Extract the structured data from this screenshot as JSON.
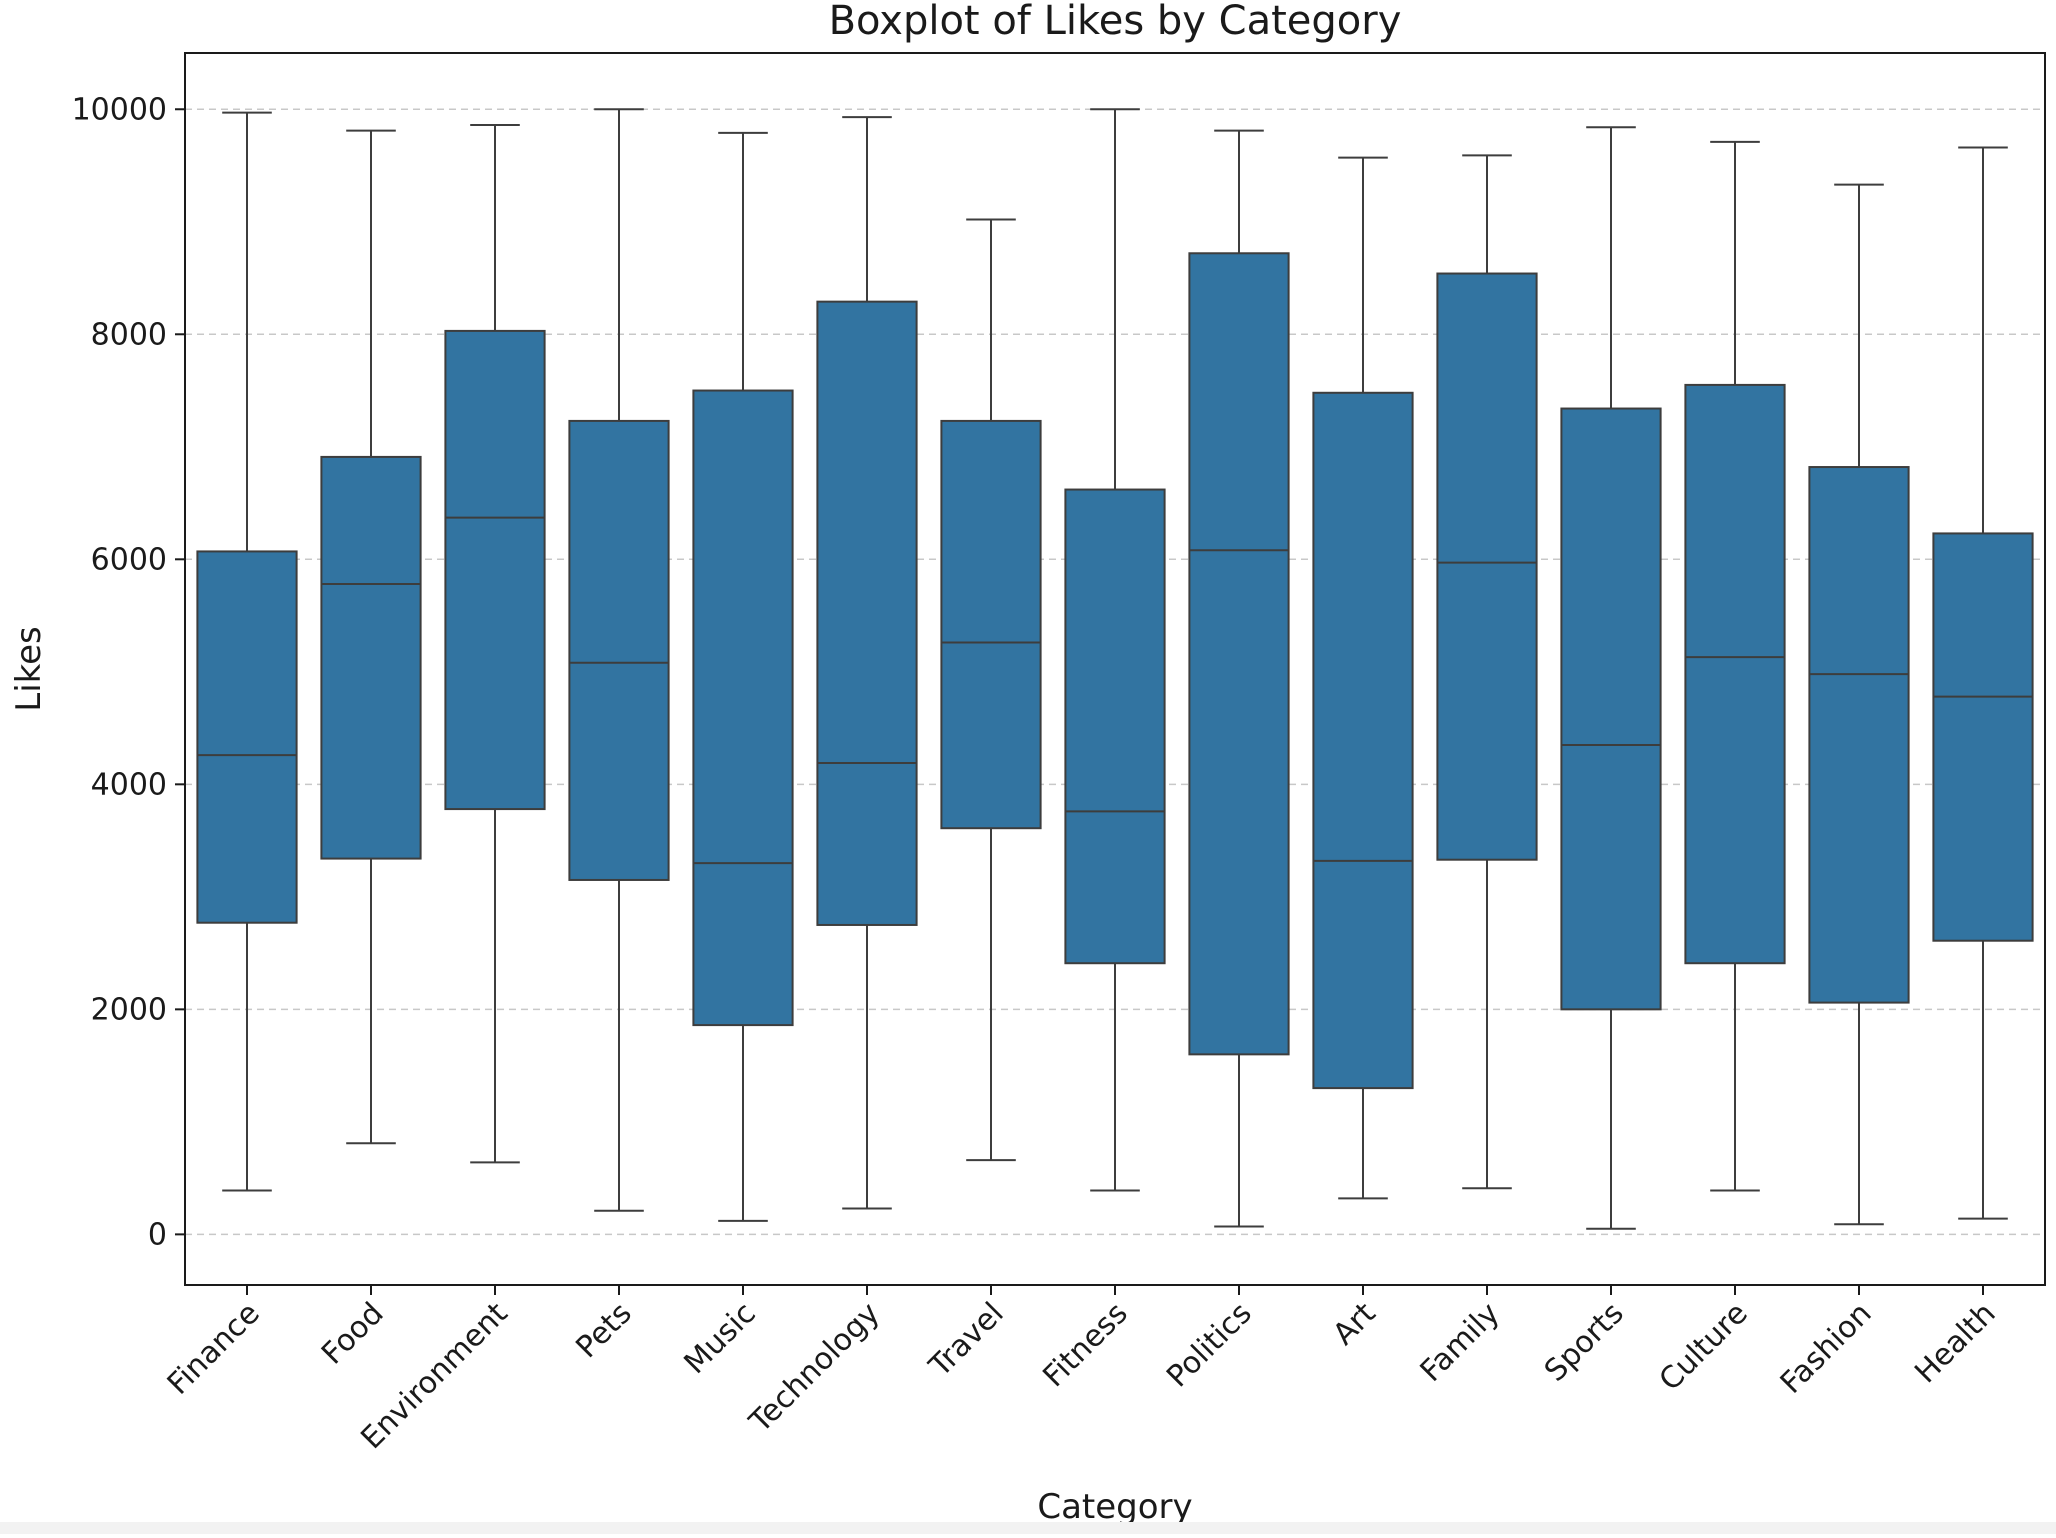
{
  "chart_data": {
    "type": "boxplot",
    "title": "Boxplot of Likes by Category",
    "xlabel": "Category",
    "ylabel": "Likes",
    "ylim": [
      -450,
      10500
    ],
    "yticks": [
      0,
      2000,
      4000,
      6000,
      8000,
      10000
    ],
    "grid": "y-dashed",
    "box_color": "#3274a1",
    "edge_color": "#3d3d3d",
    "categories": [
      "Finance",
      "Food",
      "Environment",
      "Pets",
      "Music",
      "Technology",
      "Travel",
      "Fitness",
      "Politics",
      "Art",
      "Family",
      "Sports",
      "Culture",
      "Fashion",
      "Health"
    ],
    "boxes": [
      {
        "category": "Finance",
        "min": 390,
        "q1": 2770,
        "median": 4260,
        "q3": 6070,
        "max": 9970
      },
      {
        "category": "Food",
        "min": 810,
        "q1": 3340,
        "median": 5780,
        "q3": 6910,
        "max": 9810
      },
      {
        "category": "Environment",
        "min": 640,
        "q1": 3780,
        "median": 6370,
        "q3": 8030,
        "max": 9860
      },
      {
        "category": "Pets",
        "min": 210,
        "q1": 3150,
        "median": 5080,
        "q3": 7230,
        "max": 10000
      },
      {
        "category": "Music",
        "min": 120,
        "q1": 1860,
        "median": 3300,
        "q3": 7500,
        "max": 9790
      },
      {
        "category": "Technology",
        "min": 230,
        "q1": 2750,
        "median": 4190,
        "q3": 8290,
        "max": 9930
      },
      {
        "category": "Travel",
        "min": 660,
        "q1": 3610,
        "median": 5260,
        "q3": 7230,
        "max": 9020
      },
      {
        "category": "Fitness",
        "min": 390,
        "q1": 2410,
        "median": 3760,
        "q3": 6620,
        "max": 10000
      },
      {
        "category": "Politics",
        "min": 70,
        "q1": 1600,
        "median": 6080,
        "q3": 8720,
        "max": 9810
      },
      {
        "category": "Art",
        "min": 320,
        "q1": 1300,
        "median": 3320,
        "q3": 7480,
        "max": 9570
      },
      {
        "category": "Family",
        "min": 410,
        "q1": 3330,
        "median": 5970,
        "q3": 8540,
        "max": 9590
      },
      {
        "category": "Sports",
        "min": 50,
        "q1": 2000,
        "median": 4350,
        "q3": 7340,
        "max": 9840
      },
      {
        "category": "Culture",
        "min": 390,
        "q1": 2410,
        "median": 5130,
        "q3": 7550,
        "max": 9710
      },
      {
        "category": "Fashion",
        "min": 90,
        "q1": 2060,
        "median": 4980,
        "q3": 6820,
        "max": 9330
      },
      {
        "category": "Health",
        "min": 140,
        "q1": 2610,
        "median": 4780,
        "q3": 6230,
        "max": 9660
      }
    ]
  }
}
